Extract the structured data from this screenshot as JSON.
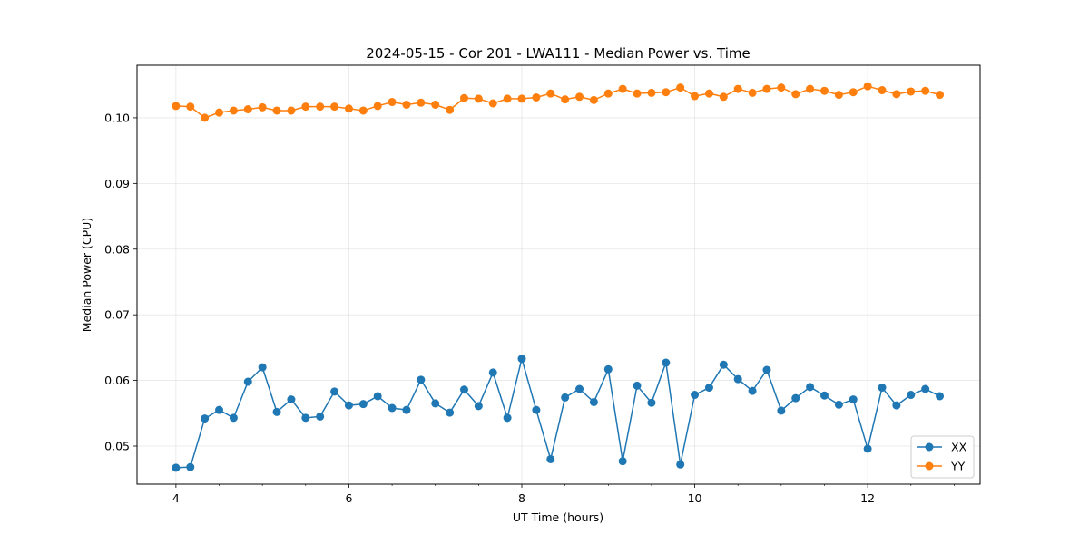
{
  "chart_data": {
    "type": "line",
    "title": "2024-05-15 - Cor 201 - LWA111 - Median Power vs. Time",
    "xlabel": "UT Time (hours)",
    "ylabel": "Median Power (CPU)",
    "xlim": [
      3.55,
      13.3
    ],
    "ylim": [
      0.0442,
      0.108
    ],
    "xticks": [
      4,
      6,
      8,
      10,
      12
    ],
    "xtick_labels": [
      "4",
      "6",
      "8",
      "10",
      "12"
    ],
    "yticks": [
      0.05,
      0.06,
      0.07,
      0.08,
      0.09,
      0.1
    ],
    "ytick_labels": [
      "0.05",
      "0.06",
      "0.07",
      "0.08",
      "0.09",
      "0.10"
    ],
    "grid": true,
    "legend_position": "lower-right",
    "x": [
      4.0,
      4.1667,
      4.3333,
      4.5,
      4.6667,
      4.8333,
      5.0,
      5.1667,
      5.3333,
      5.5,
      5.6667,
      5.8333,
      6.0,
      6.1667,
      6.3333,
      6.5,
      6.6667,
      6.8333,
      7.0,
      7.1667,
      7.3333,
      7.5,
      7.6667,
      7.8333,
      8.0,
      8.1667,
      8.3333,
      8.5,
      8.6667,
      8.8333,
      9.0,
      9.1667,
      9.3333,
      9.5,
      9.6667,
      9.8333,
      10.0,
      10.1667,
      10.3333,
      10.5,
      10.6667,
      10.8333,
      11.0,
      11.1667,
      11.3333,
      11.5,
      11.6667,
      11.8333,
      12.0,
      12.1667,
      12.3333,
      12.5,
      12.6667,
      12.8333
    ],
    "series": [
      {
        "name": "XX",
        "color": "#1f77b4",
        "values": [
          0.0467,
          0.0468,
          0.0542,
          0.0555,
          0.0543,
          0.0598,
          0.062,
          0.0552,
          0.0571,
          0.0543,
          0.0545,
          0.0583,
          0.0562,
          0.0564,
          0.0576,
          0.0558,
          0.0555,
          0.0601,
          0.0565,
          0.0551,
          0.0586,
          0.0561,
          0.0612,
          0.0543,
          0.0633,
          0.0555,
          0.048,
          0.0574,
          0.0587,
          0.0567,
          0.0617,
          0.0477,
          0.0592,
          0.0566,
          0.0627,
          0.0472,
          0.0578,
          0.0589,
          0.0624,
          0.0602,
          0.0584,
          0.0616,
          0.0554,
          0.0573,
          0.059,
          0.0577,
          0.0563,
          0.0571,
          0.0496,
          0.0589,
          0.0562,
          0.0578,
          0.0587,
          0.0576
        ]
      },
      {
        "name": "YY",
        "color": "#ff7f0e",
        "values": [
          0.1018,
          0.1017,
          0.1,
          0.1008,
          0.1011,
          0.1013,
          0.1016,
          0.1011,
          0.1011,
          0.1017,
          0.1017,
          0.1017,
          0.1014,
          0.1011,
          0.1018,
          0.1024,
          0.102,
          0.1023,
          0.102,
          0.1012,
          0.103,
          0.1029,
          0.1022,
          0.1029,
          0.1029,
          0.1031,
          0.1037,
          0.1028,
          0.1032,
          0.1027,
          0.1037,
          0.1044,
          0.1037,
          0.1038,
          0.1039,
          0.1046,
          0.1033,
          0.1037,
          0.1032,
          0.1044,
          0.1038,
          0.1044,
          0.1046,
          0.1036,
          0.1044,
          0.1041,
          0.1035,
          0.1039,
          0.1048,
          0.1042,
          0.1036,
          0.104,
          0.1041,
          0.1035
        ]
      }
    ]
  }
}
